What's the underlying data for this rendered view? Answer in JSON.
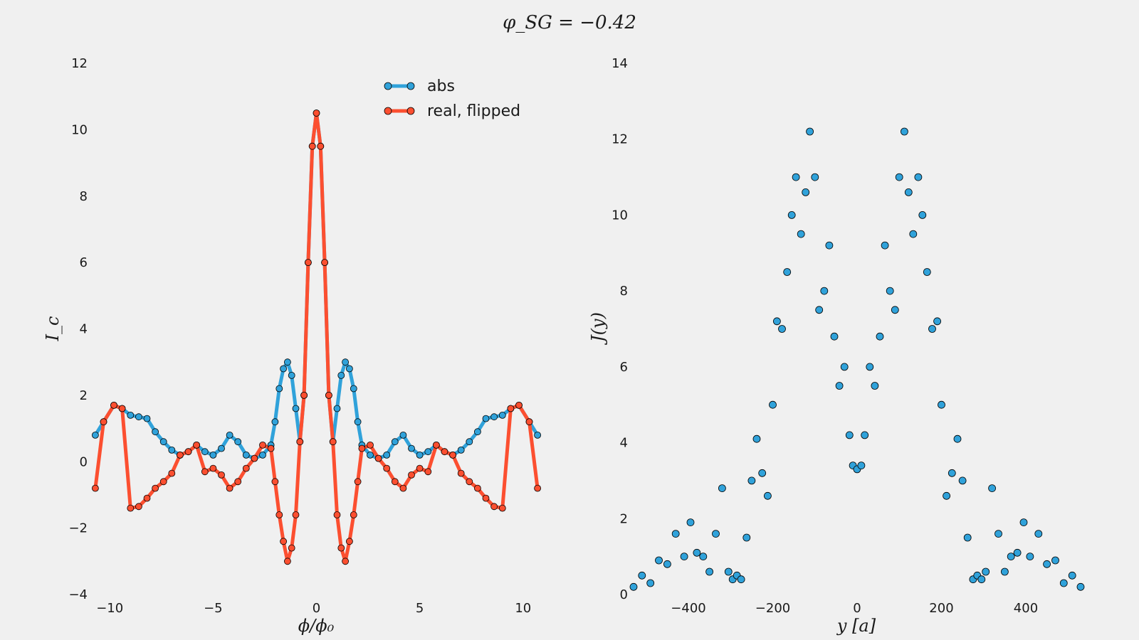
{
  "figure": {
    "suptitle": "φ_SG = −0.42"
  },
  "chart_data": [
    {
      "type": "line",
      "xlabel": "ϕ/ϕ₀",
      "ylabel": "I_c",
      "xlim": [
        -10.8,
        10.8
      ],
      "ylim": [
        -4,
        12
      ],
      "xticks": [
        "−10",
        "−5",
        "0",
        "5",
        "10"
      ],
      "yticks": [
        "−4",
        "−2",
        "0",
        "2",
        "4",
        "6",
        "8",
        "10",
        "12"
      ],
      "grid": false,
      "legend": "top-center",
      "series": [
        {
          "name": "abs",
          "color": "#30a2da",
          "markers": true,
          "x": [
            -10.7,
            -10.3,
            -9.8,
            -9.4,
            -9.0,
            -8.6,
            -8.2,
            -7.8,
            -7.4,
            -7.0,
            -6.6,
            -6.2,
            -5.8,
            -5.4,
            -5.0,
            -4.6,
            -4.2,
            -3.8,
            -3.4,
            -3.0,
            -2.6,
            -2.2,
            -2.0,
            -1.8,
            -1.6,
            -1.4,
            -1.2,
            -1.0,
            -0.8,
            -0.6,
            -0.4,
            -0.2,
            0.0,
            0.2,
            0.4,
            0.6,
            0.8,
            1.0,
            1.2,
            1.4,
            1.6,
            1.8,
            2.0,
            2.2,
            2.6,
            3.0,
            3.4,
            3.8,
            4.2,
            4.6,
            5.0,
            5.4,
            5.8,
            6.2,
            6.6,
            7.0,
            7.4,
            7.8,
            8.2,
            8.6,
            9.0,
            9.4,
            9.8,
            10.3,
            10.7
          ],
          "y": [
            0.8,
            1.2,
            1.7,
            1.6,
            1.4,
            1.35,
            1.3,
            0.9,
            0.6,
            0.35,
            0.2,
            0.3,
            0.5,
            0.3,
            0.2,
            0.4,
            0.8,
            0.6,
            0.2,
            0.1,
            0.2,
            0.5,
            1.2,
            2.2,
            2.8,
            3.0,
            2.6,
            1.6,
            0.6,
            2.0,
            6.0,
            9.5,
            10.5,
            9.5,
            6.0,
            2.0,
            0.6,
            1.6,
            2.6,
            3.0,
            2.8,
            2.2,
            1.2,
            0.5,
            0.2,
            0.1,
            0.2,
            0.6,
            0.8,
            0.4,
            0.2,
            0.3,
            0.5,
            0.3,
            0.2,
            0.35,
            0.6,
            0.9,
            1.3,
            1.35,
            1.4,
            1.6,
            1.7,
            1.2,
            0.8
          ]
        },
        {
          "name": "real, flipped",
          "color": "#fc4f30",
          "markers": true,
          "x": [
            -10.7,
            -10.3,
            -9.8,
            -9.4,
            -9.0,
            -8.6,
            -8.2,
            -7.8,
            -7.4,
            -7.0,
            -6.6,
            -6.2,
            -5.8,
            -5.4,
            -5.0,
            -4.6,
            -4.2,
            -3.8,
            -3.4,
            -3.0,
            -2.6,
            -2.2,
            -2.0,
            -1.8,
            -1.6,
            -1.4,
            -1.2,
            -1.0,
            -0.8,
            -0.6,
            -0.4,
            -0.2,
            0.0,
            0.2,
            0.4,
            0.6,
            0.8,
            1.0,
            1.2,
            1.4,
            1.6,
            1.8,
            2.0,
            2.2,
            2.6,
            3.0,
            3.4,
            3.8,
            4.2,
            4.6,
            5.0,
            5.4,
            5.8,
            6.2,
            6.6,
            7.0,
            7.4,
            7.8,
            8.2,
            8.6,
            9.0,
            9.4,
            9.8,
            10.3,
            10.7
          ],
          "y": [
            -0.8,
            1.2,
            1.7,
            1.6,
            -1.4,
            -1.35,
            -1.1,
            -0.8,
            -0.6,
            -0.35,
            0.2,
            0.3,
            0.5,
            -0.3,
            -0.2,
            -0.4,
            -0.8,
            -0.6,
            -0.2,
            0.1,
            0.5,
            0.4,
            -0.6,
            -1.6,
            -2.4,
            -3.0,
            -2.6,
            -1.6,
            0.6,
            2.0,
            6.0,
            9.5,
            10.5,
            9.5,
            6.0,
            2.0,
            0.6,
            -1.6,
            -2.6,
            -3.0,
            -2.4,
            -1.6,
            -0.6,
            0.4,
            0.5,
            0.1,
            -0.2,
            -0.6,
            -0.8,
            -0.4,
            -0.2,
            -0.3,
            0.5,
            0.3,
            0.2,
            -0.35,
            -0.6,
            -0.8,
            -1.1,
            -1.35,
            -1.4,
            1.6,
            1.7,
            1.2,
            -0.8
          ]
        }
      ]
    },
    {
      "type": "scatter",
      "xlabel": "y [a]",
      "ylabel": "J(y)",
      "xlim": [
        -530,
        530
      ],
      "ylim": [
        0,
        14
      ],
      "xticks": [
        "−400",
        "−200",
        "0",
        "200",
        "400"
      ],
      "yticks": [
        "0",
        "2",
        "4",
        "6",
        "8",
        "10",
        "12",
        "14"
      ],
      "grid": false,
      "series": [
        {
          "color": "#30a2da",
          "x": [
            -530,
            -510,
            -490,
            -470,
            -450,
            -430,
            -410,
            -395,
            -380,
            -365,
            -350,
            -335,
            -320,
            -305,
            -295,
            -285,
            -275,
            -262,
            -250,
            -238,
            -225,
            -212,
            -200,
            -190,
            -178,
            -166,
            -155,
            -145,
            -133,
            -122,
            -112,
            -100,
            -90,
            -78,
            -66,
            -54,
            -42,
            -30,
            -18,
            -10,
            0,
            10,
            18,
            30,
            42,
            54,
            66,
            78,
            90,
            100,
            112,
            122,
            133,
            145,
            155,
            166,
            178,
            190,
            200,
            212,
            225,
            238,
            250,
            262,
            275,
            285,
            295,
            305,
            320,
            335,
            350,
            365,
            380,
            395,
            410,
            430,
            450,
            470,
            490,
            510,
            530
          ],
          "y": [
            0.2,
            0.5,
            0.3,
            0.9,
            0.8,
            1.6,
            1.0,
            1.9,
            1.1,
            1.0,
            0.6,
            1.6,
            2.8,
            0.6,
            0.4,
            0.5,
            0.4,
            1.5,
            3.0,
            4.1,
            3.2,
            2.6,
            5.0,
            7.2,
            7.0,
            8.5,
            10.0,
            11.0,
            9.5,
            10.6,
            12.2,
            11.0,
            7.5,
            8.0,
            9.2,
            6.8,
            5.5,
            6.0,
            4.2,
            3.4,
            3.3,
            3.4,
            4.2,
            6.0,
            5.5,
            6.8,
            9.2,
            8.0,
            7.5,
            11.0,
            12.2,
            10.6,
            9.5,
            11.0,
            10.0,
            8.5,
            7.0,
            7.2,
            5.0,
            2.6,
            3.2,
            4.1,
            3.0,
            1.5,
            0.4,
            0.5,
            0.4,
            0.6,
            2.8,
            1.6,
            0.6,
            1.0,
            1.1,
            1.9,
            1.0,
            1.6,
            0.8,
            0.9,
            0.3,
            0.5,
            0.2
          ]
        }
      ]
    }
  ]
}
